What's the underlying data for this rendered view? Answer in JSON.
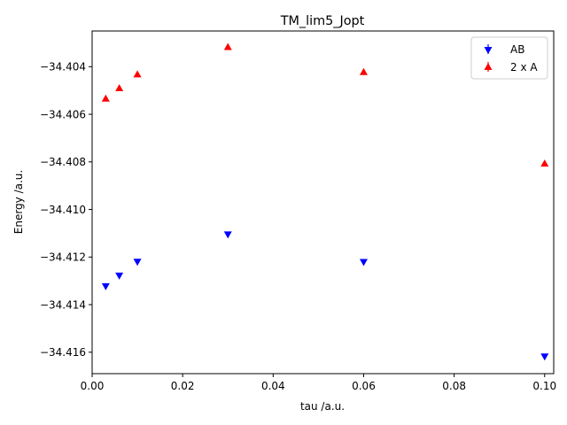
{
  "chart_data": {
    "type": "scatter",
    "title": "TM_lim5_Jopt",
    "xlabel": "tau /a.u.",
    "ylabel": "Energy /a.u.",
    "xlim": [
      0.0,
      0.102
    ],
    "ylim": [
      -34.4169,
      -34.4025
    ],
    "xticks": [
      0.0,
      0.02,
      0.04,
      0.06,
      0.08,
      0.1
    ],
    "xtick_labels": [
      "0.00",
      "0.02",
      "0.04",
      "0.06",
      "0.08",
      "0.10"
    ],
    "yticks": [
      -34.404,
      -34.406,
      -34.408,
      -34.41,
      -34.412,
      -34.414,
      -34.416
    ],
    "ytick_labels": [
      "−34.404",
      "−34.406",
      "−34.408",
      "−34.410",
      "−34.412",
      "−34.414",
      "−34.416"
    ],
    "grid": false,
    "legend_position": "top-right",
    "series": [
      {
        "name": "AB",
        "marker": "triangle-down",
        "color": "#0000ff",
        "points": [
          {
            "x": 0.003,
            "y": -34.41325
          },
          {
            "x": 0.006,
            "y": -34.4128
          },
          {
            "x": 0.01,
            "y": -34.41222
          },
          {
            "x": 0.03,
            "y": -34.41107
          },
          {
            "x": 0.06,
            "y": -34.41223
          },
          {
            "x": 0.1,
            "y": -34.4162
          }
        ]
      },
      {
        "name": "2 x A",
        "marker": "triangle-up",
        "color": "#ff0000",
        "points": [
          {
            "x": 0.003,
            "y": -34.40532
          },
          {
            "x": 0.006,
            "y": -34.40488
          },
          {
            "x": 0.01,
            "y": -34.4043
          },
          {
            "x": 0.03,
            "y": -34.40315
          },
          {
            "x": 0.06,
            "y": -34.4042
          },
          {
            "x": 0.1,
            "y": -34.40805
          }
        ]
      }
    ]
  }
}
